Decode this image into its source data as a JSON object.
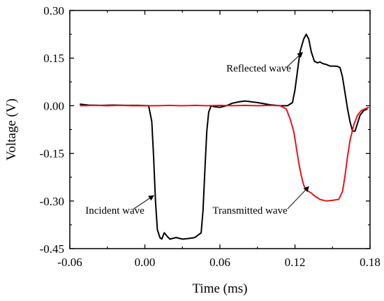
{
  "chart_data": {
    "type": "line",
    "title": "",
    "xlabel": "Time (ms)",
    "ylabel": "Voltage (V)",
    "xlim": [
      -0.06,
      0.18
    ],
    "ylim": [
      -0.45,
      0.3
    ],
    "xticks": [
      -0.06,
      0.0,
      0.06,
      0.12,
      0.18
    ],
    "xtick_labels": [
      "-0.06",
      "0.00",
      "0.06",
      "0.12",
      "0.18"
    ],
    "yticks": [
      -0.45,
      -0.3,
      -0.15,
      0.0,
      0.15,
      0.3
    ],
    "ytick_labels": [
      "-0.45",
      "-0.30",
      "-0.15",
      "0.00",
      "0.15",
      "0.30"
    ],
    "grid": false,
    "legend": "none",
    "series": [
      {
        "color": "#000000",
        "x": [
          -0.052,
          -0.045,
          -0.035,
          -0.025,
          -0.015,
          -0.005,
          0.003,
          0.0055,
          0.007,
          0.0085,
          0.01,
          0.012,
          0.0135,
          0.0155,
          0.0175,
          0.02,
          0.025,
          0.03,
          0.035,
          0.04,
          0.045,
          0.0465,
          0.048,
          0.0495,
          0.051,
          0.053,
          0.0555,
          0.06,
          0.065,
          0.07,
          0.075,
          0.08,
          0.09,
          0.1,
          0.108,
          0.114,
          0.118,
          0.12,
          0.122,
          0.124,
          0.127,
          0.129,
          0.131,
          0.133,
          0.1355,
          0.138,
          0.14,
          0.142,
          0.145,
          0.148,
          0.151,
          0.154,
          0.156,
          0.158,
          0.16,
          0.162,
          0.164,
          0.166,
          0.168,
          0.17,
          0.172,
          0.175,
          0.178
        ],
        "y": [
          0.005,
          0.002,
          0.001,
          0.002,
          0.001,
          0.001,
          0.0,
          -0.05,
          -0.16,
          -0.3,
          -0.39,
          -0.415,
          -0.42,
          -0.4,
          -0.41,
          -0.42,
          -0.415,
          -0.42,
          -0.418,
          -0.415,
          -0.4,
          -0.33,
          -0.2,
          -0.08,
          -0.02,
          0.0,
          -0.003,
          -0.005,
          0.0,
          0.008,
          0.012,
          0.015,
          0.01,
          0.003,
          0.0,
          0.0,
          0.01,
          0.05,
          0.11,
          0.17,
          0.21,
          0.225,
          0.21,
          0.17,
          0.14,
          0.135,
          0.138,
          0.133,
          0.13,
          0.125,
          0.125,
          0.124,
          0.12,
          0.09,
          0.04,
          -0.01,
          -0.05,
          -0.08,
          -0.08,
          -0.055,
          -0.03,
          -0.015,
          -0.01
        ]
      },
      {
        "color": "#e8141b",
        "x": [
          -0.052,
          -0.04,
          -0.03,
          -0.02,
          -0.01,
          0.0,
          0.01,
          0.02,
          0.03,
          0.04,
          0.05,
          0.06,
          0.07,
          0.08,
          0.09,
          0.1,
          0.108,
          0.113,
          0.116,
          0.119,
          0.121,
          0.123,
          0.125,
          0.127,
          0.129,
          0.131,
          0.133,
          0.136,
          0.14,
          0.145,
          0.15,
          0.155,
          0.158,
          0.16,
          0.162,
          0.164,
          0.167,
          0.17,
          0.173,
          0.176,
          0.179
        ],
        "y": [
          0.0,
          0.001,
          0.0,
          0.001,
          0.0,
          0.0,
          0.0,
          0.001,
          0.0,
          0.001,
          0.0,
          0.001,
          0.0,
          0.001,
          0.0,
          0.001,
          0.0,
          -0.01,
          -0.04,
          -0.08,
          -0.13,
          -0.18,
          -0.22,
          -0.25,
          -0.265,
          -0.27,
          -0.275,
          -0.285,
          -0.295,
          -0.3,
          -0.298,
          -0.295,
          -0.27,
          -0.22,
          -0.16,
          -0.11,
          -0.06,
          -0.03,
          -0.015,
          -0.01,
          -0.005
        ]
      }
    ],
    "annotations": [
      {
        "text": "Reflected wave",
        "text_at": [
          0.091,
          0.108
        ],
        "arrow_from": [
          0.113,
          0.12
        ],
        "arrow_to": [
          0.126,
          0.168
        ]
      },
      {
        "text": "Incident wave",
        "text_at": [
          -0.024,
          -0.34
        ],
        "arrow_from": [
          -0.009,
          -0.325
        ],
        "arrow_to": [
          0.007,
          -0.283
        ]
      },
      {
        "text": "Transmitted wave",
        "text_at": [
          0.084,
          -0.34
        ],
        "arrow_from": [
          0.114,
          -0.325
        ],
        "arrow_to": [
          0.131,
          -0.255
        ]
      }
    ]
  }
}
